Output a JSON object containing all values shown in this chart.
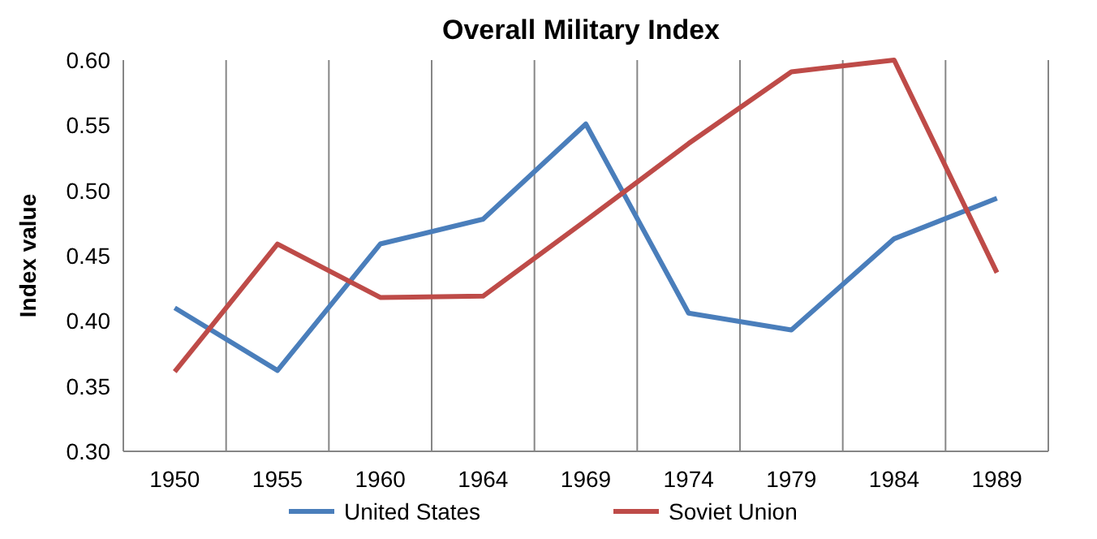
{
  "chart_data": {
    "type": "line",
    "title": "Overall Military Index",
    "ylabel": "Index value",
    "categories": [
      "1950",
      "1955",
      "1960",
      "1964",
      "1969",
      "1974",
      "1979",
      "1984",
      "1989"
    ],
    "series": [
      {
        "name": "United States",
        "color": "#4a7ebb",
        "values": [
          0.41,
          0.362,
          0.459,
          0.478,
          0.551,
          0.406,
          0.393,
          0.463,
          0.494
        ]
      },
      {
        "name": "Soviet Union",
        "color": "#be4b48",
        "values": [
          0.361,
          0.459,
          0.418,
          0.419,
          0.477,
          0.536,
          0.591,
          0.6,
          0.437
        ]
      }
    ],
    "ylim": [
      0.3,
      0.6
    ],
    "yticks": [
      {
        "value": 0.3,
        "label": "0.30"
      },
      {
        "value": 0.35,
        "label": "0.35"
      },
      {
        "value": 0.4,
        "label": "0.40"
      },
      {
        "value": 0.45,
        "label": "0.45"
      },
      {
        "value": 0.5,
        "label": "0.50"
      },
      {
        "value": 0.55,
        "label": "0.55"
      },
      {
        "value": 0.6,
        "label": "0.60"
      }
    ],
    "grid": "x",
    "legend": "bottom",
    "marker": "none",
    "line_style": "solid"
  }
}
